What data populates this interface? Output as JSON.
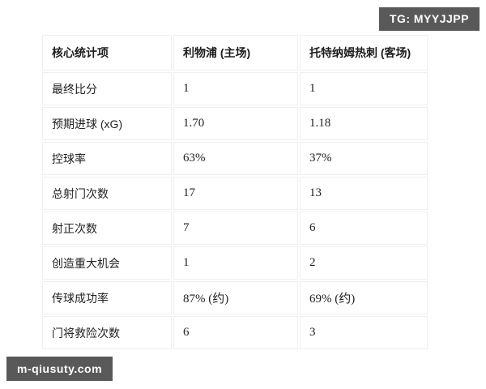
{
  "badges": {
    "telegram": "TG: MYYJJPP",
    "site": "m-qiusuty.com"
  },
  "colors": {
    "badge_bg": "#595959",
    "badge_text": "#ffffff",
    "table_border": "#efefef",
    "text": "#222222"
  },
  "chart_data": {
    "type": "table",
    "title": "",
    "columns": [
      "核心统计项",
      "利物浦 (主场)",
      "托特纳姆热刺 (客场)"
    ],
    "rows": [
      [
        "最终比分",
        "1",
        "1"
      ],
      [
        "预期进球 (xG)",
        "1.70",
        "1.18"
      ],
      [
        "控球率",
        "63%",
        "37%"
      ],
      [
        "总射门次数",
        "17",
        "13"
      ],
      [
        "射正次数",
        "7",
        "6"
      ],
      [
        "创造重大机会",
        "1",
        "2"
      ],
      [
        "传球成功率",
        "87% (约)",
        "69% (约)"
      ],
      [
        "门将救险次数",
        "6",
        "3"
      ]
    ]
  }
}
